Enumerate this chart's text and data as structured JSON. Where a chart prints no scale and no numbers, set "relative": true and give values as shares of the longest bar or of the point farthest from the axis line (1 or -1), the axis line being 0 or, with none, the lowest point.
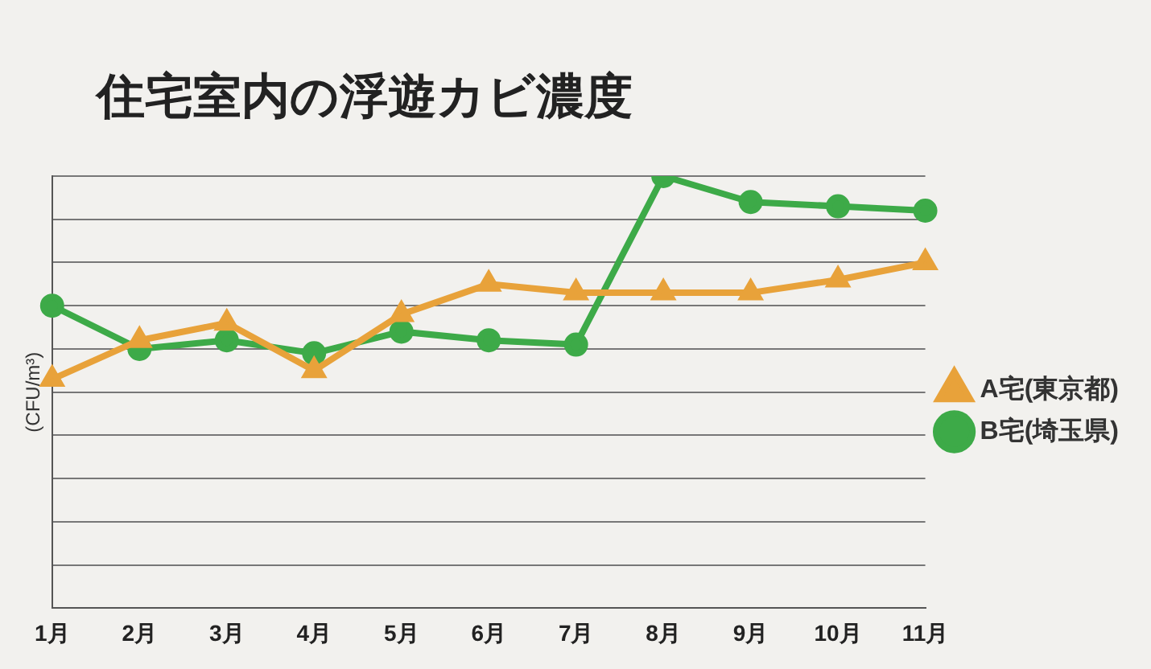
{
  "chart_data": {
    "type": "line",
    "title": "住宅室内の浮遊カビ濃度",
    "ylabel": "(CFU/m³)",
    "relative": true,
    "grid": "y",
    "legend": "right",
    "categories": [
      "1月",
      "2月",
      "3月",
      "4月",
      "5月",
      "6月",
      "7月",
      "8月",
      "9月",
      "10月",
      "11月"
    ],
    "series": [
      {
        "name": "A宅(東京都)",
        "color": "#e8a23a",
        "marker": "triangle",
        "values": [
          0.53,
          0.62,
          0.66,
          0.55,
          0.68,
          0.75,
          0.73,
          0.73,
          0.73,
          0.76,
          0.8
        ]
      },
      {
        "name": "B宅(埼玉県)",
        "color": "#3daa48",
        "marker": "circle",
        "values": [
          0.7,
          0.6,
          0.62,
          0.59,
          0.64,
          0.62,
          0.61,
          1,
          0.94,
          0.93,
          0.92
        ]
      }
    ]
  }
}
